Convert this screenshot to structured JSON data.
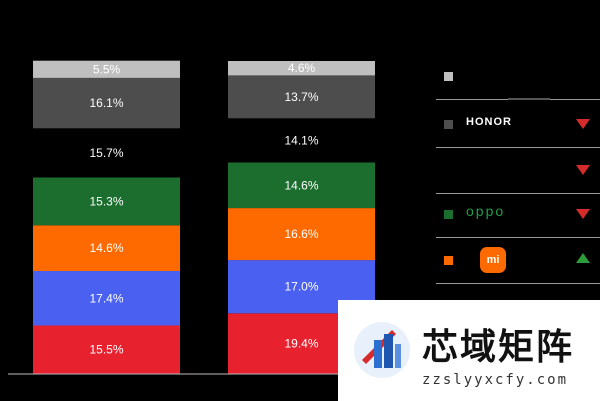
{
  "chart_data": {
    "type": "bar",
    "stacked": true,
    "normalized_to": 100,
    "categories": [
      "",
      ""
    ],
    "series": [
      {
        "values": [
          15.5,
          19.4
        ],
        "color": "#e8212f"
      },
      {
        "values": [
          17.4,
          17.0
        ],
        "color": "#4a60f0"
      },
      {
        "values": [
          14.6,
          16.6
        ],
        "color": "#ff6a00"
      },
      {
        "values": [
          15.3,
          14.6
        ],
        "color": "#1b6e2e"
      },
      {
        "values": [
          15.7,
          14.1
        ],
        "color": "#000000"
      },
      {
        "values": [
          16.1,
          13.7
        ],
        "color": "#4d4d4d"
      },
      {
        "values": [
          5.5,
          4.6
        ],
        "color": "#bfbfbf"
      }
    ],
    "labels": [
      [
        "15.5%",
        "17.4%",
        "14.6%",
        "15.3%",
        "15.7%",
        "16.1%",
        "5.5%"
      ],
      [
        "19.4%",
        "17.0%",
        "16.6%",
        "14.6%",
        "14.1%",
        "13.7%",
        "4.6%"
      ]
    ],
    "ylim": [
      0,
      100
    ],
    "grid": false,
    "legend": "right"
  },
  "legend": [
    {
      "brand": "",
      "swatch": "#bfbfbf",
      "trend": "none"
    },
    {
      "brand": "HONOR",
      "swatch": "#4d4d4d",
      "trend": "down",
      "trend_color": "#d62b2b"
    },
    {
      "brand": "",
      "swatch": "#000000",
      "trend": "down",
      "trend_color": "#d62b2b"
    },
    {
      "brand": "oppo",
      "swatch": "#1b6e2e",
      "trend": "down",
      "trend_color": "#d62b2b"
    },
    {
      "brand": "mi",
      "swatch": "#ff6a00",
      "trend": "up",
      "trend_color": "#2e9b3a"
    },
    {
      "brand": "",
      "swatch": "#4a60f0",
      "trend": "none"
    }
  ],
  "watermark": {
    "title": "芯域矩阵",
    "url": "zzslyyxcfy.com"
  }
}
